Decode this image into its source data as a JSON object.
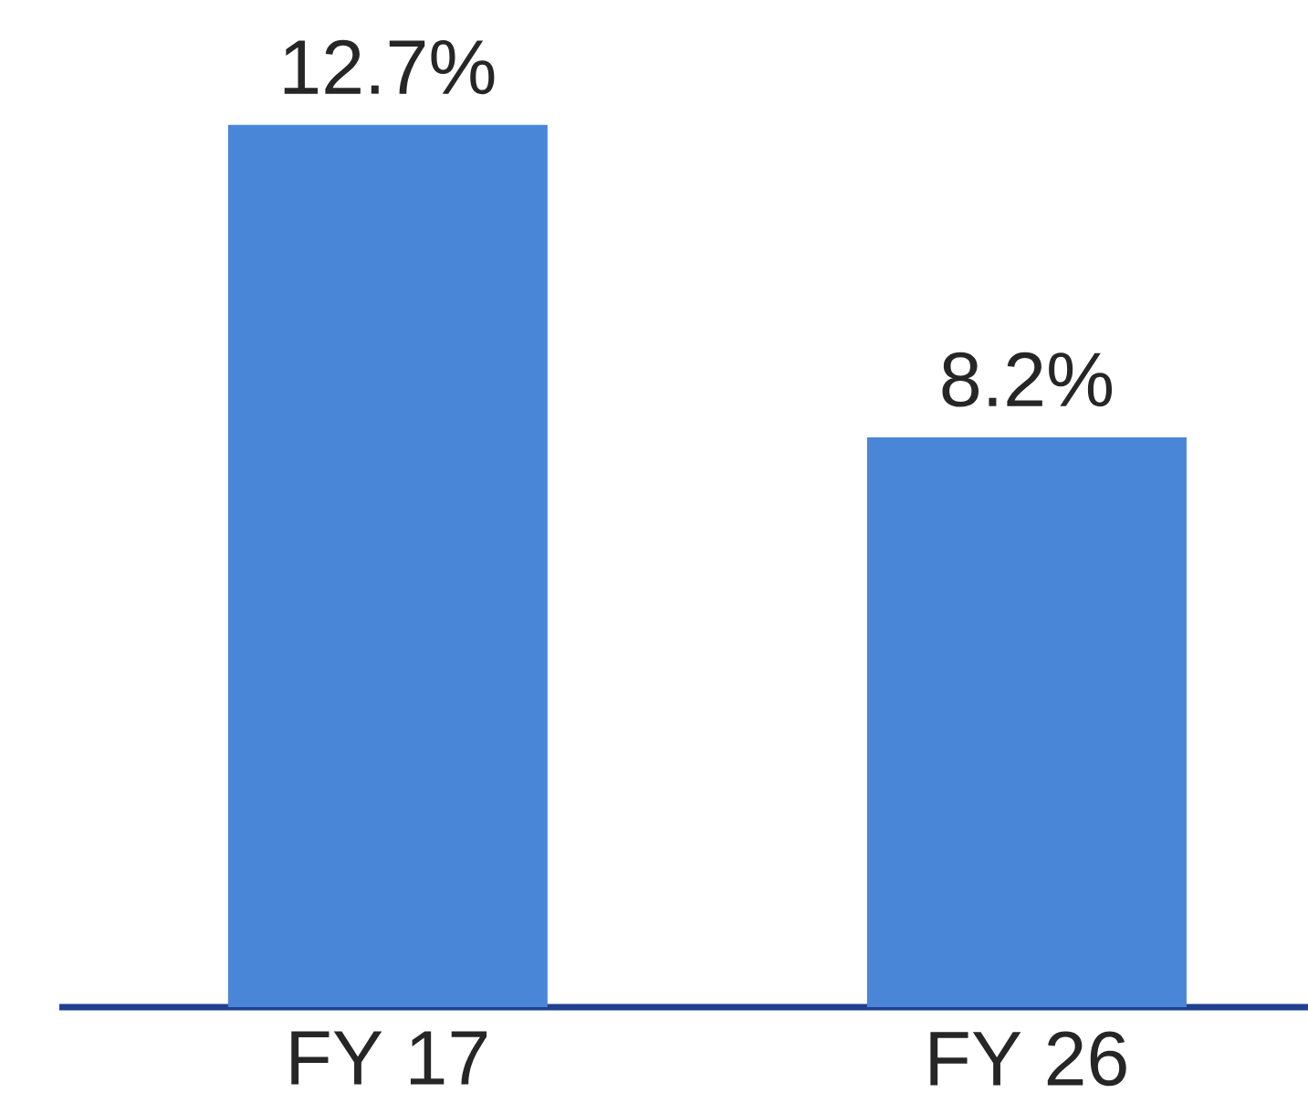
{
  "chart_data": {
    "type": "bar",
    "categories": [
      "FY 17",
      "FY 26"
    ],
    "values": [
      12.7,
      8.2
    ],
    "value_labels": [
      "12.7%",
      "8.2%"
    ],
    "color": "#4a86d8"
  }
}
